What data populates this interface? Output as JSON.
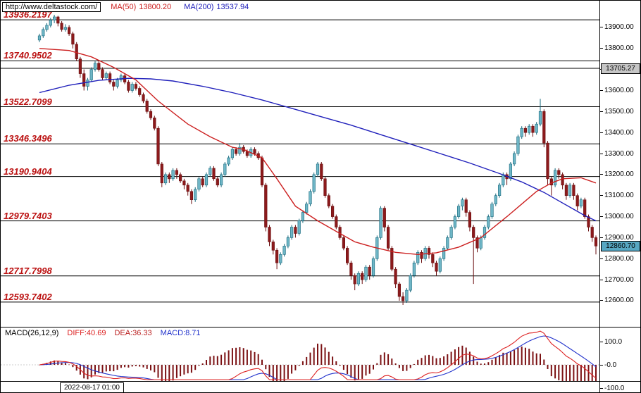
{
  "header": {
    "url": "http://www.deltastock.com/",
    "ma50_label": "MA(50)",
    "ma50_value": "13800.20",
    "ma200_label": "MA(200)",
    "ma200_value": "13537.94"
  },
  "colors": {
    "up_candle": "#6fb6c6",
    "up_candle_border": "#17697d",
    "down_candle": "#8c1a1c",
    "down_candle_border": "#6b0f10",
    "ma50": "#cc2020",
    "ma200": "#2020bb",
    "level_line": "#000000",
    "level_label": "#bb1111",
    "current_price_bg": "#57a7c2",
    "session_label_bg": "#c6c6c6",
    "macd_hist": "#7b1113",
    "macd_diff": "#dd2222",
    "macd_dea": "#2233cc",
    "dea_label_color": "#bb2222",
    "macd_label_color": "#2233cc"
  },
  "chart_data": {
    "type": "candlestick",
    "title": "",
    "ylim": [
      12476,
      14027
    ],
    "y_ticks": [
      {
        "price": 13900,
        "label": "13900.00"
      },
      {
        "price": 13800,
        "label": "13800.00"
      },
      {
        "price": 13700,
        "label": "13700.00"
      },
      {
        "price": 13600,
        "label": "13600.00"
      },
      {
        "price": 13500,
        "label": "13500.00"
      },
      {
        "price": 13400,
        "label": "13400.00"
      },
      {
        "price": 13300,
        "label": "13300.00"
      },
      {
        "price": 13200,
        "label": "13200.00"
      },
      {
        "price": 13100,
        "label": "13100.00"
      },
      {
        "price": 13000,
        "label": "13000.00"
      },
      {
        "price": 12900,
        "label": "12900.00"
      },
      {
        "price": 12800,
        "label": "12800.00"
      },
      {
        "price": 12700,
        "label": "12700.00"
      },
      {
        "price": 12600,
        "label": "12600.00"
      }
    ],
    "levels": [
      {
        "price": 13936.2197,
        "label": "13936.2197"
      },
      {
        "price": 13740.9502,
        "label": "13740.9502"
      },
      {
        "price": 13522.7099,
        "label": "13522.7099"
      },
      {
        "price": 13346.3496,
        "label": "13346.3496"
      },
      {
        "price": 13190.9404,
        "label": "13190.9404"
      },
      {
        "price": 12979.7403,
        "label": "12979.7403"
      },
      {
        "price": 12717.7998,
        "label": "12717.7998"
      },
      {
        "price": 12593.7402,
        "label": "12593.7402"
      }
    ],
    "session_line": {
      "price": 13705.27,
      "label": "13705.27"
    },
    "current_price": {
      "price": 12860.7,
      "label": "12860.70"
    },
    "x_axis_label": "2022-08-17 01:00",
    "candles": [
      [
        13840,
        13870,
        13830,
        13860
      ],
      [
        13860,
        13900,
        13850,
        13890
      ],
      [
        13890,
        13920,
        13880,
        13910
      ],
      [
        13910,
        13945,
        13900,
        13935
      ],
      [
        13935,
        13960,
        13920,
        13950
      ],
      [
        13950,
        13955,
        13905,
        13920
      ],
      [
        13920,
        13930,
        13880,
        13890
      ],
      [
        13890,
        13915,
        13880,
        13900
      ],
      [
        13900,
        13910,
        13860,
        13870
      ],
      [
        13870,
        13880,
        13800,
        13820
      ],
      [
        13820,
        13830,
        13740,
        13750
      ],
      [
        13750,
        13760,
        13660,
        13680
      ],
      [
        13680,
        13700,
        13600,
        13620
      ],
      [
        13620,
        13660,
        13600,
        13650
      ],
      [
        13650,
        13710,
        13640,
        13700
      ],
      [
        13700,
        13740,
        13690,
        13730
      ],
      [
        13730,
        13740,
        13690,
        13700
      ],
      [
        13700,
        13710,
        13650,
        13660
      ],
      [
        13660,
        13690,
        13650,
        13680
      ],
      [
        13680,
        13690,
        13630,
        13640
      ],
      [
        13640,
        13650,
        13600,
        13620
      ],
      [
        13620,
        13660,
        13610,
        13650
      ],
      [
        13650,
        13680,
        13640,
        13670
      ],
      [
        13670,
        13680,
        13630,
        13640
      ],
      [
        13640,
        13650,
        13590,
        13600
      ],
      [
        13600,
        13640,
        13590,
        13630
      ],
      [
        13630,
        13640,
        13600,
        13610
      ],
      [
        13610,
        13620,
        13570,
        13580
      ],
      [
        13580,
        13590,
        13540,
        13550
      ],
      [
        13550,
        13560,
        13490,
        13500
      ],
      [
        13500,
        13510,
        13460,
        13470
      ],
      [
        13470,
        13480,
        13410,
        13420
      ],
      [
        13420,
        13430,
        13240,
        13250
      ],
      [
        13250,
        13260,
        13140,
        13160
      ],
      [
        13160,
        13210,
        13150,
        13200
      ],
      [
        13200,
        13210,
        13160,
        13180
      ],
      [
        13180,
        13230,
        13170,
        13220
      ],
      [
        13220,
        13230,
        13180,
        13200
      ],
      [
        13200,
        13210,
        13160,
        13170
      ],
      [
        13170,
        13180,
        13130,
        13150
      ],
      [
        13150,
        13160,
        13100,
        13120
      ],
      [
        13120,
        13130,
        13060,
        13080
      ],
      [
        13080,
        13140,
        13070,
        13130
      ],
      [
        13130,
        13190,
        13120,
        13180
      ],
      [
        13180,
        13190,
        13140,
        13150
      ],
      [
        13150,
        13210,
        13140,
        13200
      ],
      [
        13200,
        13240,
        13190,
        13230
      ],
      [
        13230,
        13240,
        13170,
        13180
      ],
      [
        13180,
        13190,
        13140,
        13150
      ],
      [
        13150,
        13210,
        13140,
        13200
      ],
      [
        13200,
        13260,
        13190,
        13250
      ],
      [
        13250,
        13290,
        13240,
        13280
      ],
      [
        13280,
        13330,
        13270,
        13320
      ],
      [
        13320,
        13330,
        13290,
        13300
      ],
      [
        13300,
        13350,
        13290,
        13330
      ],
      [
        13330,
        13340,
        13300,
        13310
      ],
      [
        13310,
        13320,
        13280,
        13290
      ],
      [
        13290,
        13330,
        13280,
        13320
      ],
      [
        13320,
        13330,
        13290,
        13300
      ],
      [
        13300,
        13310,
        13270,
        13280
      ],
      [
        13280,
        13290,
        13140,
        13150
      ],
      [
        13150,
        13160,
        12930,
        12950
      ],
      [
        12950,
        12960,
        12860,
        12880
      ],
      [
        12880,
        12890,
        12820,
        12840
      ],
      [
        12840,
        12850,
        12750,
        12780
      ],
      [
        12780,
        12830,
        12770,
        12820
      ],
      [
        12820,
        12870,
        12810,
        12860
      ],
      [
        12860,
        12910,
        12850,
        12900
      ],
      [
        12900,
        12960,
        12890,
        12950
      ],
      [
        12950,
        12960,
        12900,
        12920
      ],
      [
        12920,
        12990,
        12910,
        12980
      ],
      [
        12980,
        13030,
        12970,
        13020
      ],
      [
        13020,
        13070,
        13010,
        13060
      ],
      [
        13060,
        13130,
        13050,
        13120
      ],
      [
        13120,
        13210,
        13110,
        13200
      ],
      [
        13200,
        13260,
        13190,
        13250
      ],
      [
        13250,
        13260,
        13170,
        13180
      ],
      [
        13180,
        13190,
        13090,
        13100
      ],
      [
        13100,
        13110,
        13040,
        13050
      ],
      [
        13050,
        13060,
        12990,
        13000
      ],
      [
        13000,
        13010,
        12940,
        12950
      ],
      [
        12950,
        12960,
        12890,
        12900
      ],
      [
        12900,
        12910,
        12840,
        12850
      ],
      [
        12850,
        12860,
        12770,
        12780
      ],
      [
        12780,
        12790,
        12700,
        12720
      ],
      [
        12720,
        12730,
        12650,
        12680
      ],
      [
        12680,
        12740,
        12670,
        12730
      ],
      [
        12730,
        12740,
        12680,
        12700
      ],
      [
        12700,
        12770,
        12690,
        12760
      ],
      [
        12760,
        12770,
        12700,
        12720
      ],
      [
        12720,
        12810,
        12710,
        12800
      ],
      [
        12800,
        12910,
        12790,
        12900
      ],
      [
        12900,
        13050,
        12890,
        13040
      ],
      [
        13040,
        13050,
        12930,
        12950
      ],
      [
        12950,
        12960,
        12840,
        12850
      ],
      [
        12850,
        12860,
        12740,
        12750
      ],
      [
        12750,
        12760,
        12660,
        12680
      ],
      [
        12680,
        12690,
        12600,
        12620
      ],
      [
        12620,
        12640,
        12580,
        12600
      ],
      [
        12600,
        12660,
        12590,
        12650
      ],
      [
        12650,
        12730,
        12640,
        12720
      ],
      [
        12720,
        12790,
        12710,
        12780
      ],
      [
        12780,
        12840,
        12770,
        12830
      ],
      [
        12830,
        12840,
        12780,
        12800
      ],
      [
        12800,
        12860,
        12790,
        12850
      ],
      [
        12850,
        12860,
        12800,
        12820
      ],
      [
        12820,
        12830,
        12760,
        12780
      ],
      [
        12780,
        12790,
        12720,
        12740
      ],
      [
        12740,
        12810,
        12730,
        12800
      ],
      [
        12800,
        12860,
        12790,
        12850
      ],
      [
        12850,
        12910,
        12840,
        12900
      ],
      [
        12900,
        12960,
        12890,
        12950
      ],
      [
        12950,
        13010,
        12940,
        13000
      ],
      [
        13000,
        13060,
        12990,
        13050
      ],
      [
        13050,
        13090,
        13030,
        13080
      ],
      [
        13080,
        13090,
        13000,
        13020
      ],
      [
        13020,
        13030,
        12930,
        12950
      ],
      [
        12950,
        12960,
        12680,
        12900
      ],
      [
        12900,
        12910,
        12830,
        12850
      ],
      [
        12850,
        12910,
        12840,
        12900
      ],
      [
        12900,
        12960,
        12890,
        12950
      ],
      [
        12950,
        13010,
        12940,
        13000
      ],
      [
        13000,
        13070,
        12990,
        13060
      ],
      [
        13060,
        13110,
        13050,
        13100
      ],
      [
        13100,
        13160,
        13090,
        13150
      ],
      [
        13150,
        13210,
        13140,
        13200
      ],
      [
        13200,
        13210,
        13150,
        13180
      ],
      [
        13180,
        13260,
        13170,
        13250
      ],
      [
        13250,
        13310,
        13240,
        13300
      ],
      [
        13300,
        13390,
        13290,
        13380
      ],
      [
        13380,
        13430,
        13370,
        13420
      ],
      [
        13420,
        13430,
        13380,
        13400
      ],
      [
        13400,
        13440,
        13390,
        13430
      ],
      [
        13430,
        13440,
        13380,
        13400
      ],
      [
        13400,
        13450,
        13390,
        13440
      ],
      [
        13440,
        13560,
        13430,
        13500
      ],
      [
        13500,
        13510,
        13330,
        13350
      ],
      [
        13350,
        13360,
        13150,
        13180
      ],
      [
        13180,
        13190,
        13100,
        13150
      ],
      [
        13150,
        13230,
        13140,
        13220
      ],
      [
        13220,
        13230,
        13180,
        13200
      ],
      [
        13200,
        13210,
        13130,
        13150
      ],
      [
        13150,
        13160,
        13080,
        13100
      ],
      [
        13100,
        13160,
        13090,
        13150
      ],
      [
        13150,
        13160,
        13080,
        13100
      ],
      [
        13100,
        13110,
        13030,
        13050
      ],
      [
        13050,
        13090,
        13040,
        13080
      ],
      [
        13080,
        13090,
        12990,
        13000
      ],
      [
        13000,
        13010,
        12930,
        12950
      ],
      [
        12950,
        12960,
        12880,
        12900
      ],
      [
        12900,
        12910,
        12820,
        12860
      ]
    ],
    "ma50_points": [
      [
        0,
        13800
      ],
      [
        8,
        13790
      ],
      [
        14,
        13760
      ],
      [
        20,
        13710
      ],
      [
        26,
        13650
      ],
      [
        32,
        13550
      ],
      [
        40,
        13440
      ],
      [
        46,
        13380
      ],
      [
        52,
        13330
      ],
      [
        55,
        13320
      ],
      [
        60,
        13280
      ],
      [
        64,
        13180
      ],
      [
        69,
        13050
      ],
      [
        75,
        12980
      ],
      [
        80,
        12930
      ],
      [
        85,
        12880
      ],
      [
        90,
        12855
      ],
      [
        96,
        12830
      ],
      [
        102,
        12820
      ],
      [
        107,
        12828
      ],
      [
        113,
        12855
      ],
      [
        119,
        12900
      ],
      [
        126,
        13000
      ],
      [
        130,
        13060
      ],
      [
        134,
        13120
      ],
      [
        138,
        13160
      ],
      [
        141,
        13180
      ],
      [
        146,
        13185
      ],
      [
        150,
        13160
      ]
    ],
    "ma200_points": [
      [
        0,
        13590
      ],
      [
        8,
        13625
      ],
      [
        16,
        13648
      ],
      [
        24,
        13658
      ],
      [
        30,
        13655
      ],
      [
        36,
        13645
      ],
      [
        44,
        13620
      ],
      [
        52,
        13590
      ],
      [
        60,
        13555
      ],
      [
        68,
        13515
      ],
      [
        76,
        13475
      ],
      [
        84,
        13435
      ],
      [
        92,
        13390
      ],
      [
        100,
        13345
      ],
      [
        108,
        13300
      ],
      [
        116,
        13255
      ],
      [
        124,
        13205
      ],
      [
        130,
        13165
      ],
      [
        136,
        13115
      ],
      [
        140,
        13075
      ],
      [
        144,
        13035
      ],
      [
        147,
        13005
      ],
      [
        150,
        12980
      ]
    ],
    "macd": {
      "params_label": "MACD(26,12,9)",
      "diff_label": "DIFF:40.69",
      "dea_label": "DEA:36.33",
      "macd_label": "MACD:8.71",
      "y_ticks": [
        {
          "value": 100,
          "label": "100.0"
        },
        {
          "value": 0,
          "label": "-0.0"
        },
        {
          "value": -100,
          "label": "-100.0"
        }
      ]
    }
  }
}
